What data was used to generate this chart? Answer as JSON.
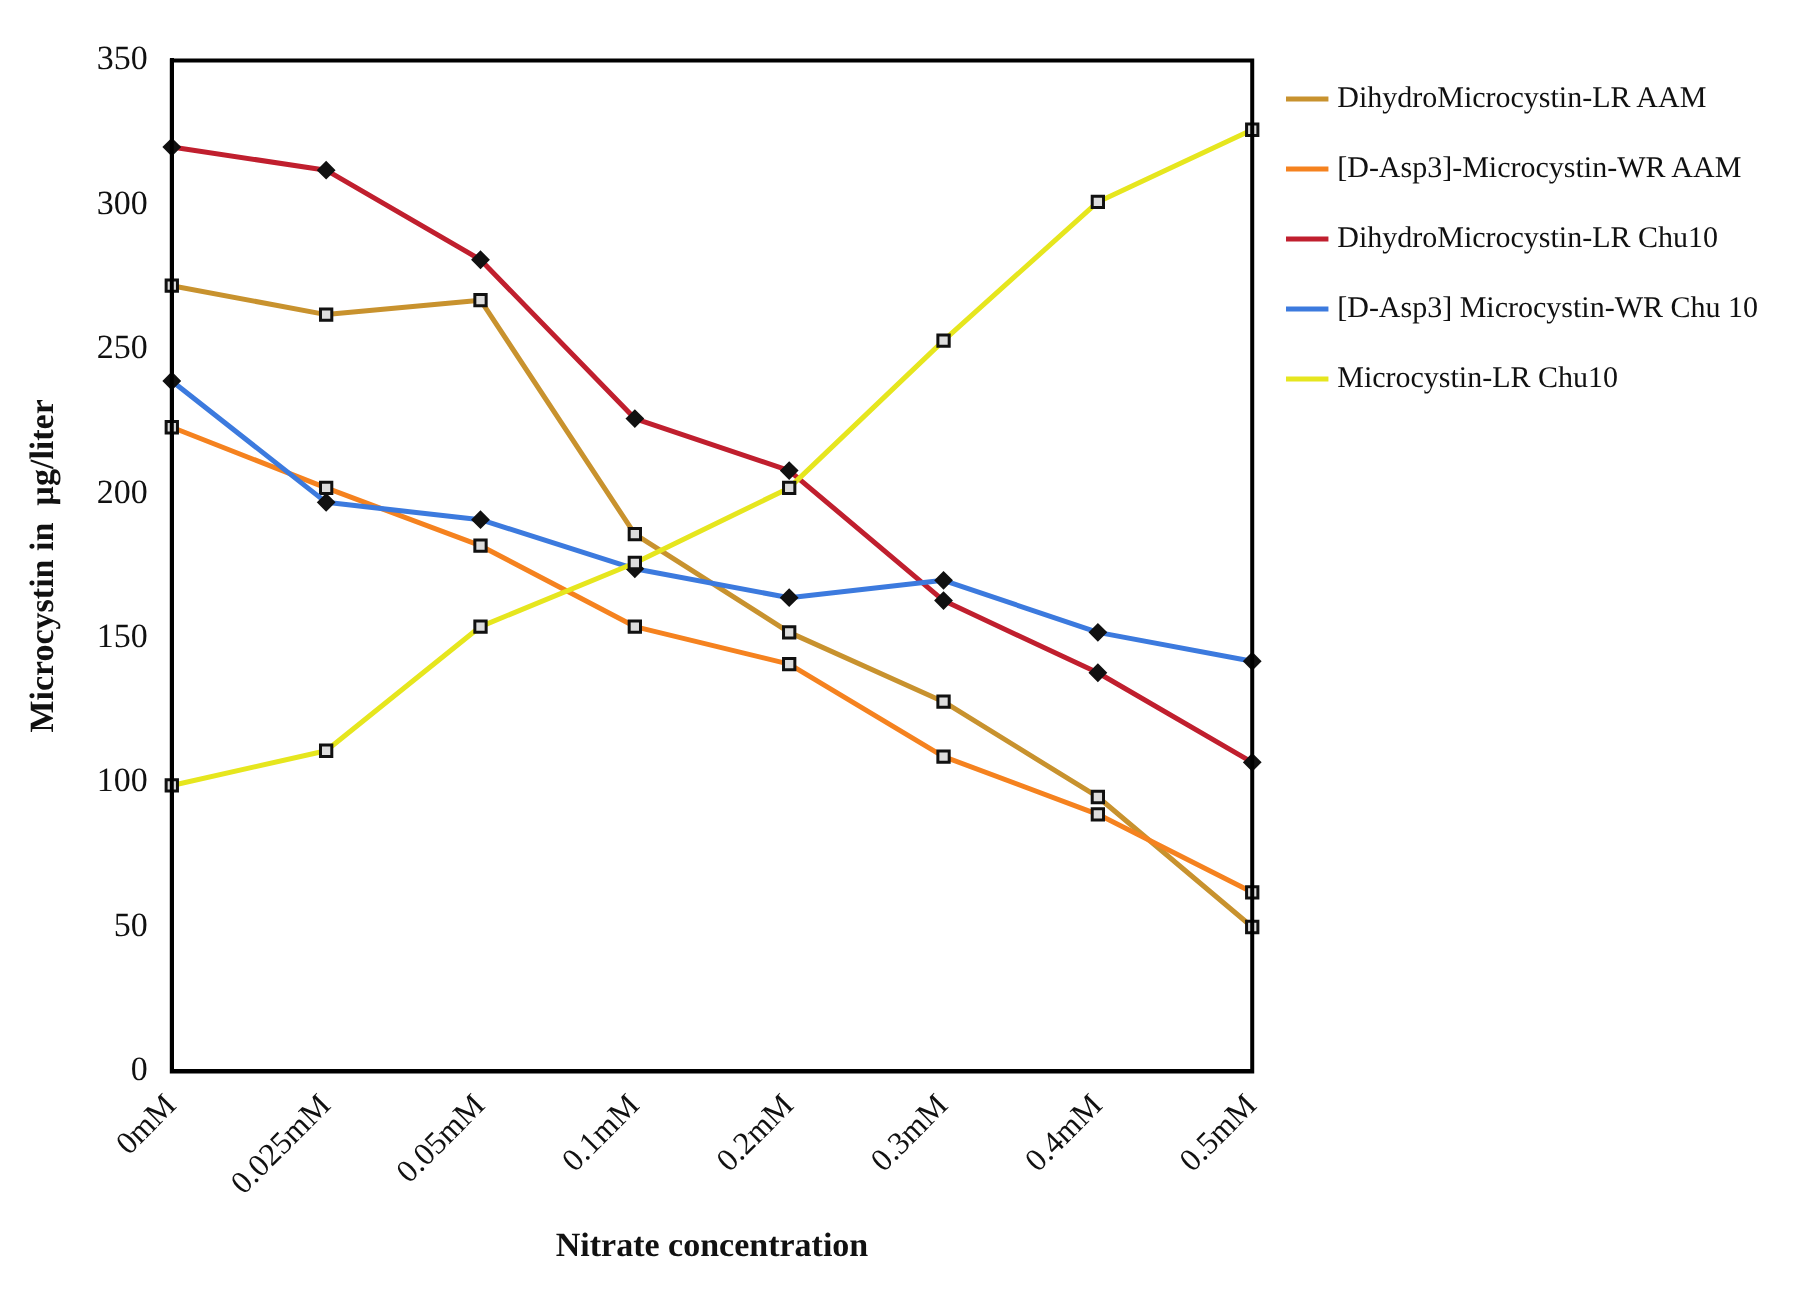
{
  "chart_data": {
    "type": "line",
    "xlabel": "Nitrate concentration",
    "ylabel": "Microcystin in  µg/liter",
    "categories": [
      "0mM",
      "0.025mM",
      "0.05mM",
      "0.1mM",
      "0.2mM",
      "0.3mM",
      "0.4mM",
      "0.5mM"
    ],
    "ylim": [
      0,
      350
    ],
    "yticks": [
      0,
      50,
      100,
      150,
      200,
      250,
      300,
      350
    ],
    "grid": false,
    "legend": "top right",
    "line_style": "solid",
    "series": [
      {
        "name": "DihydroMicrocystin-LR AAM",
        "color": "#c8922e",
        "marker": "square",
        "values": [
          272,
          262,
          267,
          186,
          152,
          128,
          95,
          50
        ]
      },
      {
        "name": "[D-Asp3]-Microcystin-WR AAM",
        "color": "#f5821f",
        "marker": "square",
        "values": [
          223,
          202,
          182,
          154,
          141,
          109,
          89,
          62
        ]
      },
      {
        "name": "DihydroMicrocystin-LR Chu10",
        "color": "#c01f2e",
        "marker": "diamond",
        "values": [
          320,
          312,
          281,
          226,
          208,
          163,
          138,
          107
        ]
      },
      {
        "name": "[D-Asp3] Microcystin-WR Chu 10",
        "color": "#3c7ade",
        "marker": "diamond",
        "values": [
          239,
          197,
          191,
          174,
          164,
          170,
          152,
          142
        ]
      },
      {
        "name": "Microcystin-LR Chu10",
        "color": "#e6e61e",
        "marker": "square",
        "values": [
          99,
          111,
          154,
          176,
          202,
          253,
          301,
          326
        ]
      }
    ]
  }
}
